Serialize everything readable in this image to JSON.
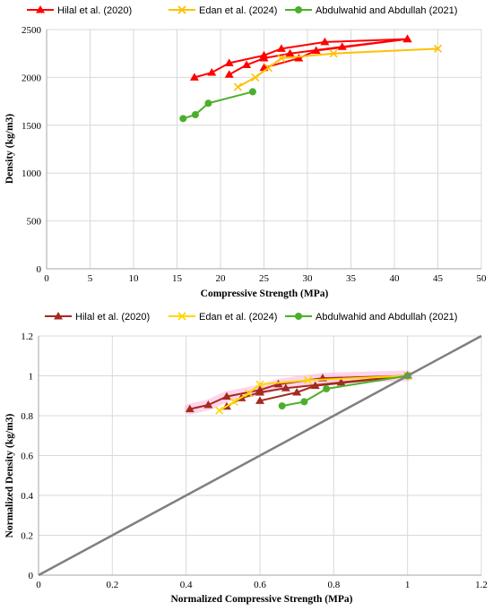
{
  "colors": {
    "hilal_top": "#ff0000",
    "hilal_bottom": "#a52a1e",
    "edan_top": "#ffc000",
    "edan_bottom": "#ffd700",
    "abdulwahid": "#4caf2a",
    "diagonal": "#7f7f7f",
    "grid": "#d9d9d9",
    "band": "#ffb3de"
  },
  "chart_data": [
    {
      "type": "line",
      "legend_position": "top",
      "xlabel": "Compressive Strength (MPa)",
      "ylabel": "Density (kg/m3)",
      "xlim": [
        0,
        50
      ],
      "ylim": [
        0,
        2500
      ],
      "xticks": [
        "0",
        "5",
        "10",
        "15",
        "20",
        "25",
        "30",
        "35",
        "40",
        "45",
        "50"
      ],
      "yticks": [
        "0",
        "500",
        "1000",
        "1500",
        "2000",
        "2500"
      ],
      "grid": true,
      "series": [
        {
          "name": "Hilal et al. (2020)",
          "marker": "triangle",
          "color": "#ff0000",
          "lines": [
            [
              [
                17,
                2000
              ],
              [
                19,
                2050
              ],
              [
                21,
                2150
              ],
              [
                25,
                2230
              ],
              [
                27,
                2300
              ],
              [
                32,
                2370
              ],
              [
                41.5,
                2400
              ]
            ],
            [
              [
                21,
                2030
              ],
              [
                23,
                2130
              ],
              [
                25,
                2200
              ],
              [
                28,
                2250
              ],
              [
                34,
                2320
              ],
              [
                41.5,
                2400
              ]
            ],
            [
              [
                25,
                2100
              ],
              [
                29,
                2200
              ],
              [
                31,
                2280
              ],
              [
                41.5,
                2400
              ]
            ]
          ]
        },
        {
          "name": "Edan et al. (2024)",
          "marker": "x",
          "color": "#ffc000",
          "lines": [
            [
              [
                22,
                1900
              ],
              [
                24,
                2000
              ],
              [
                25.5,
                2100
              ],
              [
                27,
                2200
              ],
              [
                33,
                2250
              ],
              [
                45,
                2300
              ]
            ]
          ]
        },
        {
          "name": "Abdulwahid and Abdullah (2021)",
          "marker": "circle",
          "color": "#4caf2a",
          "lines": [
            [
              [
                15.7,
                1570
              ],
              [
                17.1,
                1610
              ],
              [
                18.6,
                1730
              ],
              [
                23.7,
                1850
              ]
            ]
          ]
        }
      ]
    },
    {
      "type": "line",
      "legend_position": "top",
      "xlabel": "Normalized Compressive Strength (MPa)",
      "ylabel": "Normalized Density (kg/m3)",
      "xlim": [
        0,
        1.2
      ],
      "ylim": [
        0,
        1.2
      ],
      "xticks": [
        "0",
        "0.2",
        "0.4",
        "0.6",
        "0.8",
        "1",
        "1.2"
      ],
      "yticks": [
        "0",
        "0.2",
        "0.4",
        "0.6",
        "0.8",
        "1",
        "1.2"
      ],
      "grid": true,
      "series": [
        {
          "name": "Hilal et al. (2020)",
          "marker": "triangle",
          "color": "#a52a1e",
          "lines": [
            [
              [
                0.41,
                0.833
              ],
              [
                0.46,
                0.854
              ],
              [
                0.51,
                0.896
              ],
              [
                0.6,
                0.929
              ],
              [
                0.65,
                0.958
              ],
              [
                0.77,
                0.988
              ],
              [
                1,
                1
              ]
            ],
            [
              [
                0.51,
                0.846
              ],
              [
                0.55,
                0.888
              ],
              [
                0.6,
                0.917
              ],
              [
                0.67,
                0.938
              ],
              [
                0.82,
                0.967
              ],
              [
                1,
                1
              ]
            ],
            [
              [
                0.6,
                0.875
              ],
              [
                0.7,
                0.917
              ],
              [
                0.75,
                0.95
              ],
              [
                1,
                1
              ]
            ]
          ]
        },
        {
          "name": "Edan et al. (2024)",
          "marker": "x",
          "color": "#ffd700",
          "lines": [
            [
              [
                0.49,
                0.826
              ],
              [
                0.53,
                0.87
              ],
              [
                0.57,
                0.913
              ],
              [
                0.6,
                0.957
              ],
              [
                0.73,
                0.978
              ],
              [
                1,
                1
              ]
            ]
          ]
        },
        {
          "name": "Abdulwahid and Abdullah (2021)",
          "marker": "circle",
          "color": "#4caf2a",
          "lines": [
            [
              [
                0.66,
                0.849
              ],
              [
                0.72,
                0.87
              ],
              [
                0.78,
                0.935
              ],
              [
                1,
                1
              ]
            ]
          ]
        },
        {
          "name": "",
          "marker": "none",
          "color": "#7f7f7f",
          "lines": [
            [
              [
                0,
                0
              ],
              [
                1.2,
                1.2
              ]
            ]
          ]
        }
      ]
    }
  ]
}
